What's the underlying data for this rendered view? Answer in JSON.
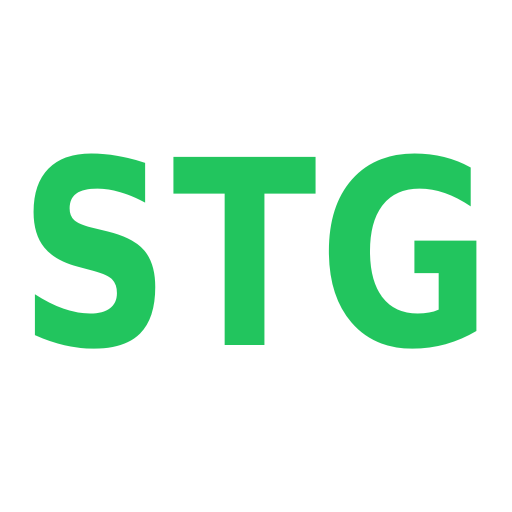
{
  "logo": {
    "text": "STG",
    "color": "#22c55e"
  },
  "background_color": "#ffffff"
}
